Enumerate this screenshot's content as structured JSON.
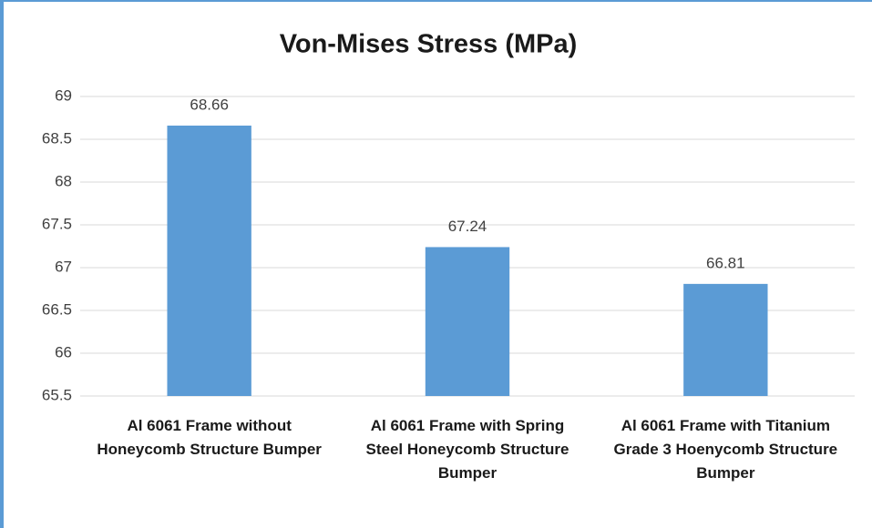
{
  "chart_data": {
    "type": "bar",
    "title": "Von-Mises Stress (MPa)",
    "categories": [
      "Al 6061 Frame without Honeycomb Structure Bumper",
      "Al 6061 Frame with Spring Steel Honeycomb Structure Bumper",
      "Al 6061 Frame with Titanium Grade 3 Hoenycomb Structure Bumper"
    ],
    "values": [
      68.66,
      67.24,
      66.81
    ],
    "color": "#5b9bd5",
    "ylim": [
      65.5,
      69
    ],
    "yticks": [
      65.5,
      66,
      66.5,
      67,
      67.5,
      68,
      68.5,
      69
    ],
    "grid": true
  }
}
